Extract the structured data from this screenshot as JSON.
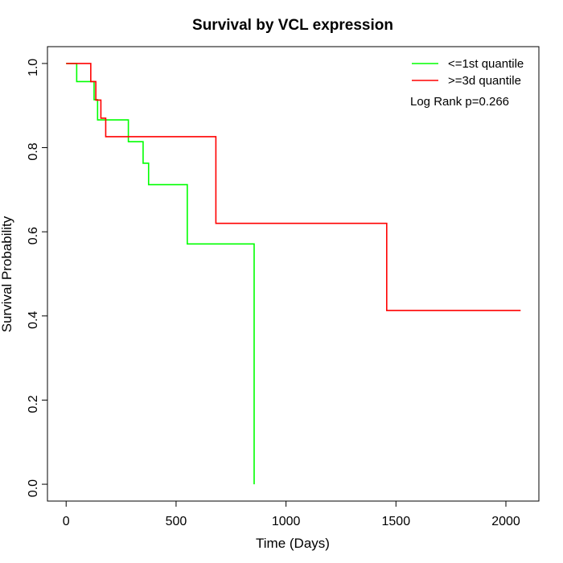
{
  "chart_data": {
    "type": "line",
    "title": "Survival by VCL expression",
    "xlabel": "Time (Days)",
    "ylabel": "Survival Probability",
    "xlim": [
      -85,
      2150
    ],
    "ylim": [
      -0.04,
      1.04
    ],
    "x_ticks": [
      0,
      500,
      1000,
      1500,
      2000
    ],
    "x_tick_labels": [
      "0",
      "500",
      "1000",
      "1500",
      "2000"
    ],
    "y_ticks": [
      0.0,
      0.2,
      0.4,
      0.6,
      0.8,
      1.0
    ],
    "y_tick_labels": [
      "0.0",
      "0.2",
      "0.4",
      "0.6",
      "0.8",
      "1.0"
    ],
    "grid": false,
    "legend_position": "top-right",
    "annotation": "Log Rank p=0.266",
    "series": [
      {
        "name": "<=1st quantile",
        "color": "#00ff00",
        "step": true,
        "x": [
          0,
          48,
          127,
          143,
          283,
          350,
          375,
          551,
          855,
          855
        ],
        "y": [
          1.0,
          0.957,
          0.914,
          0.866,
          0.814,
          0.763,
          0.712,
          0.571,
          0.571,
          0.0
        ]
      },
      {
        "name": ">=3d quantile",
        "color": "#ff0000",
        "step": true,
        "x": [
          0,
          112,
          135,
          158,
          180,
          681,
          1458,
          2067
        ],
        "y": [
          1.0,
          0.957,
          0.913,
          0.87,
          0.826,
          0.62,
          0.413,
          0.413
        ]
      }
    ]
  }
}
